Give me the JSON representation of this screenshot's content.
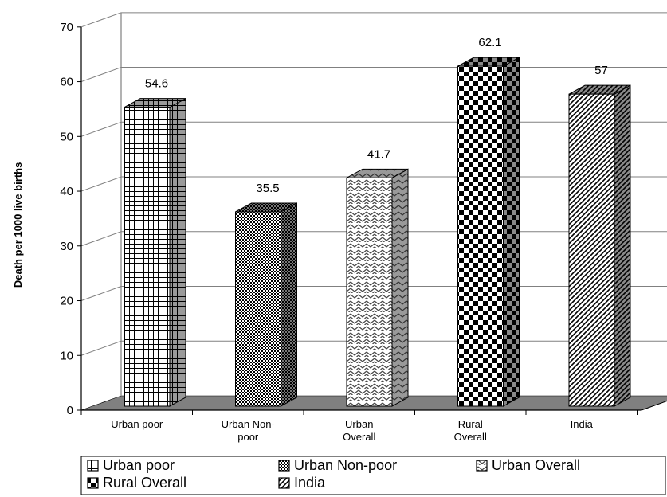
{
  "chart_data": {
    "type": "bar",
    "title": "",
    "xlabel": "",
    "ylabel": "Death per 1000 live births",
    "ylim": [
      0,
      70
    ],
    "yticks": [
      0,
      10,
      20,
      30,
      40,
      50,
      60,
      70
    ],
    "grid": true,
    "legend_position": "bottom",
    "categories": [
      [
        "Urban poor"
      ],
      [
        "Urban Non-",
        "poor"
      ],
      [
        "Urban",
        "Overall"
      ],
      [
        "Rural",
        "Overall"
      ],
      [
        "India"
      ]
    ],
    "series": [
      {
        "name": "Urban poor",
        "value": 54.6,
        "label": "54.6",
        "pattern": "grid"
      },
      {
        "name": "Urban Non-poor",
        "value": 35.5,
        "label": "35.5",
        "pattern": "fine-check"
      },
      {
        "name": "Urban Overall",
        "value": 41.7,
        "label": "41.7",
        "pattern": "zigzag"
      },
      {
        "name": "Rural Overall",
        "value": 62.1,
        "label": "62.1",
        "pattern": "checker"
      },
      {
        "name": "India",
        "value": 57,
        "label": "57",
        "pattern": "diagonal"
      }
    ],
    "colors": {
      "floor": "#808080",
      "grid": "#808080",
      "bar_edge": "#000000"
    }
  }
}
